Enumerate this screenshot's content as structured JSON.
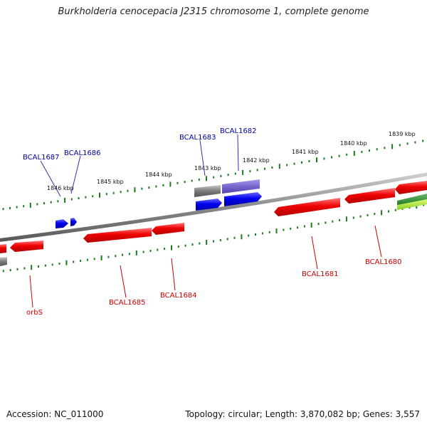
{
  "title": "Burkholderia cenocepacia J2315 chromosome 1, complete genome",
  "footer": {
    "accession": "Accession: NC_011000",
    "topology": "Topology: circular; Length: 3,870,082 bp; Genes: 3,557"
  },
  "scale_labels": [
    "1846 kbp",
    "1845 kbp",
    "1844 kbp",
    "1843 kbp",
    "1842 kbp",
    "1841 kbp",
    "1840 kbp",
    "1839 kbp"
  ],
  "gene_labels": [
    "BCAL1687",
    "BCAL1686",
    "BCAL1683",
    "BCAL1682",
    "BCAL1685",
    "BCAL1684",
    "BCAL1681",
    "BCAL1680",
    "orbS"
  ],
  "colors": {
    "backbone": "#8a8a8a",
    "tick": "#1e7a1e",
    "forward_gene": "#0000ee",
    "forward_label": "#0000aa",
    "reverse_gene": "#ee0000",
    "reverse_label": "#cc0000",
    "pseudogene": "#7766cc",
    "other": "#666666",
    "green_feature": "#228822",
    "lime_feature": "#aadd33"
  }
}
